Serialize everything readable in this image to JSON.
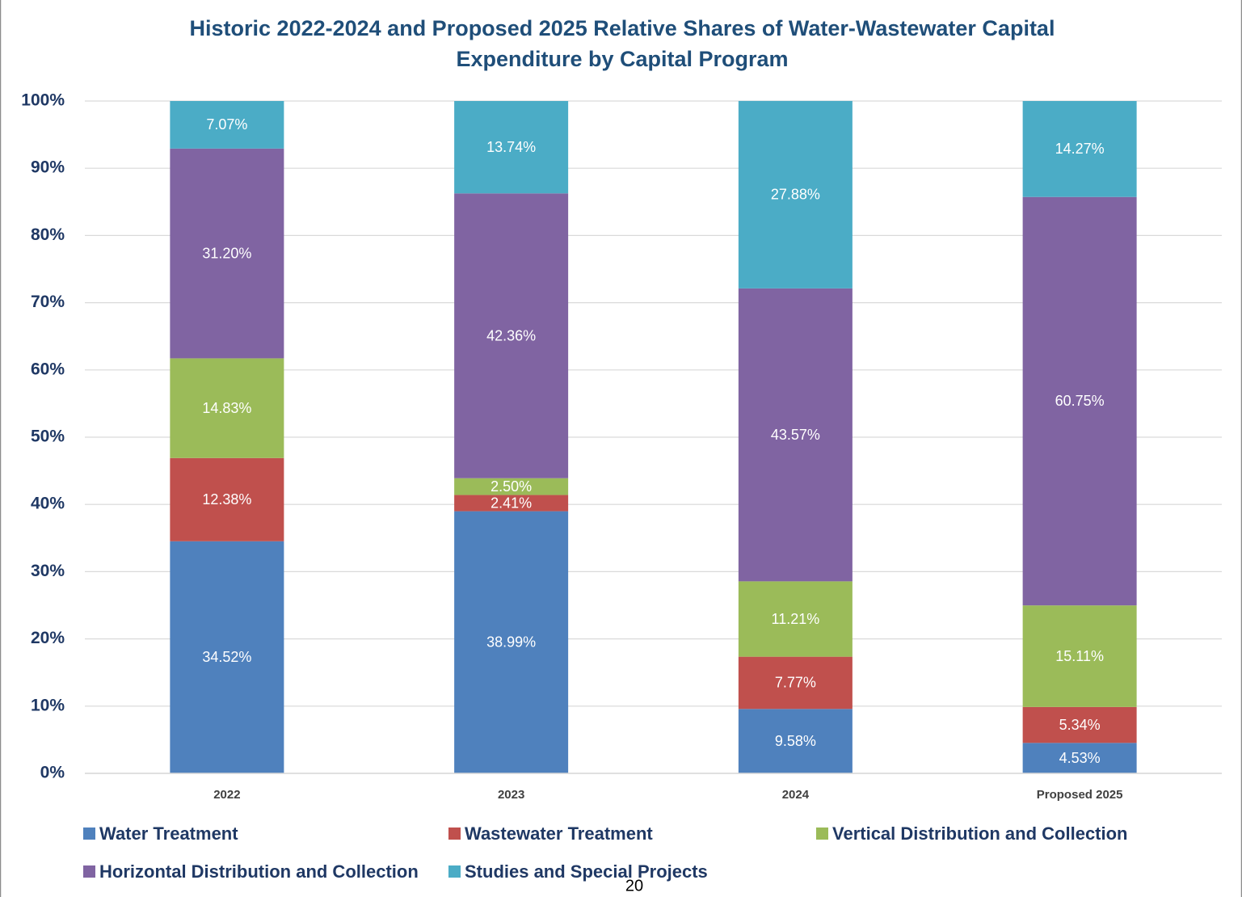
{
  "chart_data": {
    "type": "stacked_bar",
    "title": [
      "Historic 2022-2024 and Proposed 2025 Relative Shares of Water-Wastewater Capital",
      "Expenditure by Capital Program"
    ],
    "categories": [
      "2022",
      "2023",
      "2024",
      "Proposed 2025"
    ],
    "series": [
      {
        "name": "Water Treatment",
        "color": "#4f81bd",
        "values": [
          34.52,
          38.99,
          9.58,
          4.53
        ],
        "value_labels": [
          "34.52%",
          "38.99%",
          "9.58%",
          "4.53%"
        ]
      },
      {
        "name": "Wastewater Treatment",
        "color": "#c0504d",
        "values": [
          12.38,
          2.41,
          7.77,
          5.34
        ],
        "value_labels": [
          "12.38%",
          "2.41%",
          "7.77%",
          "5.34%"
        ]
      },
      {
        "name": "Vertical Distribution and Collection",
        "color": "#9bbb59",
        "values": [
          14.83,
          2.5,
          11.21,
          15.11
        ],
        "value_labels": [
          "14.83%",
          "2.50%",
          "11.21%",
          "15.11%"
        ]
      },
      {
        "name": "Horizontal Distribution and Collection",
        "color": "#8064a2",
        "values": [
          31.2,
          42.36,
          43.57,
          60.75
        ],
        "value_labels": [
          "31.20%",
          "42.36%",
          "43.57%",
          "60.75%"
        ]
      },
      {
        "name": "Studies and Special Projects",
        "color": "#4bacc6",
        "values": [
          7.07,
          13.74,
          27.88,
          14.27
        ],
        "value_labels": [
          "7.07%",
          "13.74%",
          "27.88%",
          "14.27%"
        ]
      }
    ],
    "ylim": [
      0,
      100
    ],
    "yticks": [
      {
        "value": 0,
        "label": "0%"
      },
      {
        "value": 10,
        "label": "10%"
      },
      {
        "value": 20,
        "label": "20%"
      },
      {
        "value": 30,
        "label": "30%"
      },
      {
        "value": 40,
        "label": "40%"
      },
      {
        "value": 50,
        "label": "50%"
      },
      {
        "value": 60,
        "label": "60%"
      },
      {
        "value": 70,
        "label": "70%"
      },
      {
        "value": 80,
        "label": "80%"
      },
      {
        "value": 90,
        "label": "90%"
      },
      {
        "value": 100,
        "label": "100%"
      }
    ],
    "grid": true
  },
  "page_number": "20"
}
